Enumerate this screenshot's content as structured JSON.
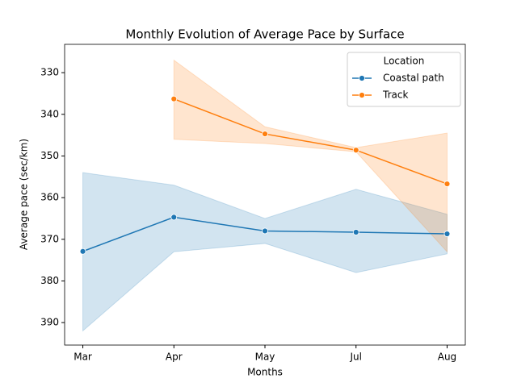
{
  "chart_data": {
    "type": "line",
    "title": "Monthly Evolution of Average Pace by Surface",
    "x_label": "Months",
    "y_label": "Average pace (sec/km)",
    "categories": [
      "Mar",
      "Apr",
      "May",
      "Jul",
      "Aug"
    ],
    "series": [
      {
        "name": "Coastal path",
        "color": "#1f77b4",
        "values": [
          372.9,
          364.7,
          368.0,
          368.3,
          368.7
        ],
        "lower": [
          354,
          357,
          365,
          358,
          364
        ],
        "upper": [
          392,
          373,
          371,
          378,
          373.5
        ]
      },
      {
        "name": "Track",
        "color": "#ff7f0e",
        "values": [
          null,
          336.3,
          344.7,
          348.6,
          356.7
        ],
        "lower": [
          null,
          327,
          343,
          348,
          344.5
        ],
        "upper": [
          null,
          346,
          347,
          349,
          373
        ]
      }
    ],
    "ylim": [
      323.2,
      395.4
    ],
    "invert_y": true,
    "yticks": [
      330,
      340,
      350,
      360,
      370,
      380,
      390
    ],
    "legend_title": "Location",
    "legend_position": "upper right"
  }
}
